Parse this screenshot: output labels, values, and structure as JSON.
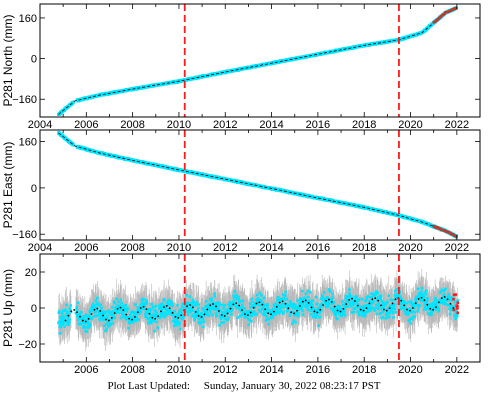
{
  "footer": {
    "label": "Plot Last Updated:",
    "timestamp": "Sunday, January 30, 2022 08:23:17 PST"
  },
  "colors": {
    "data": "#00e5ff",
    "model": "#000000",
    "error_bar": "#b8b8b8",
    "event": "#ff1a1a",
    "recent": "#c0392b"
  },
  "chart_data": [
    {
      "type": "scatter",
      "ylabel": "P281 North (mm)",
      "x_range": [
        2004,
        2023
      ],
      "ylim": [
        -230,
        215
      ],
      "x_ticks": [
        "2004",
        "2006",
        "2008",
        "2010",
        "2012",
        "2014",
        "2016",
        "2018",
        "2020",
        "2022"
      ],
      "y_ticks": [
        160,
        0,
        -160
      ],
      "events": [
        2010.25,
        2019.5
      ],
      "series": [
        {
          "x": [
            2004.8,
            2005.5,
            2006.5,
            2008.0,
            2010.0,
            2012.0,
            2014.0,
            2016.0,
            2018.0,
            2019.5,
            2020.5,
            2021.5,
            2022.0
          ],
          "values": [
            -220,
            -167,
            -145,
            -120,
            -89,
            -53,
            -18,
            17,
            52,
            74,
            102,
            180,
            200
          ]
        }
      ]
    },
    {
      "type": "scatter",
      "ylabel": "P281 East (mm)",
      "x_range": [
        2004,
        2023
      ],
      "ylim": [
        -180,
        200
      ],
      "x_ticks": [
        "2004",
        "2006",
        "2008",
        "2010",
        "2012",
        "2014",
        "2016",
        "2018",
        "2020",
        "2022"
      ],
      "y_ticks": [
        160,
        0,
        -160
      ],
      "events": [
        2010.25,
        2019.5
      ],
      "series": [
        {
          "x": [
            2004.8,
            2005.5,
            2006.5,
            2008.0,
            2010.0,
            2012.0,
            2014.0,
            2016.0,
            2018.0,
            2019.5,
            2020.5,
            2021.5,
            2022.0
          ],
          "values": [
            190,
            145,
            122,
            95,
            62,
            30,
            -2,
            -35,
            -67,
            -95,
            -118,
            -148,
            -168
          ]
        }
      ]
    },
    {
      "type": "scatter",
      "ylabel": "P281 Up (mm)",
      "x_range": [
        2004,
        2023
      ],
      "ylim": [
        -30,
        30
      ],
      "x_ticks": [
        "2006",
        "2008",
        "2010",
        "2012",
        "2014",
        "2016",
        "2018",
        "2020",
        "2022"
      ],
      "y_ticks": [
        20,
        0,
        -20
      ],
      "events": [
        2010.25,
        2019.5
      ],
      "series": [
        {
          "x": [
            2005.0,
            2006.0,
            2008.0,
            2010.0,
            2012.0,
            2014.0,
            2016.0,
            2018.0,
            2020.0,
            2022.0
          ],
          "values": [
            -5,
            -4,
            -3,
            -2,
            -1,
            0,
            1,
            2,
            2,
            3
          ],
          "seasonal_amplitude": 3.5,
          "scatter": 6,
          "error": 9
        }
      ]
    }
  ]
}
